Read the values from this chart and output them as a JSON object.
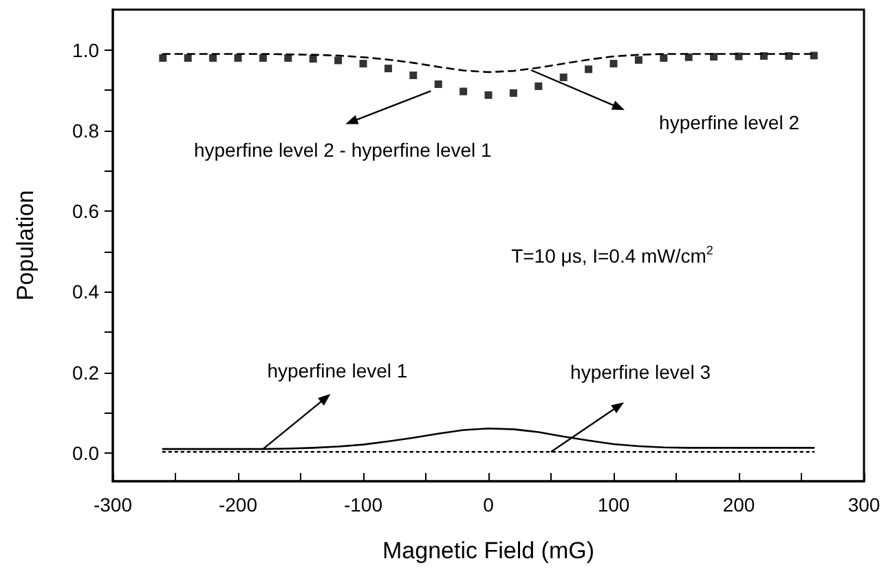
{
  "chart_data": {
    "type": "line",
    "xlabel": "Magnetic Field (mG)",
    "ylabel": "Population",
    "xlim": [
      -300,
      300
    ],
    "xticks": [
      -300,
      {
        "value": -250,
        "label": null
      },
      -200,
      {
        "value": -150,
        "label": null
      },
      -100,
      {
        "value": -50,
        "label": null
      },
      0,
      {
        "value": 50,
        "label": null
      },
      100,
      {
        "value": 150,
        "label": null
      },
      200,
      {
        "value": 250,
        "label": null
      },
      300
    ],
    "ylim": [
      -0.07,
      1.1
    ],
    "yticks": [
      {
        "value": 0,
        "label": "0.0"
      },
      {
        "value": 0.1,
        "label": null
      },
      0.2,
      {
        "value": 0.3,
        "label": null
      },
      0.4,
      {
        "value": 0.5,
        "label": null
      },
      0.6,
      {
        "value": 0.7,
        "label": null
      },
      0.8,
      {
        "value": 0.9,
        "label": null
      },
      {
        "value": 1,
        "label": "1.0"
      }
    ],
    "x": [
      -260,
      -240,
      -220,
      -200,
      -180,
      -160,
      -140,
      -120,
      -100,
      -80,
      -60,
      -40,
      -20,
      0,
      20,
      40,
      60,
      80,
      100,
      120,
      140,
      160,
      180,
      200,
      220,
      240,
      260
    ],
    "series": [
      {
        "type": "scatter",
        "marker": "square",
        "color": "#000000",
        "values": [
          0.98,
          0.98,
          0.98,
          0.98,
          0.98,
          0.98,
          0.978,
          0.974,
          0.966,
          0.954,
          0.937,
          0.915,
          0.897,
          0.888,
          0.893,
          0.91,
          0.932,
          0.952,
          0.966,
          0.975,
          0.98,
          0.982,
          0.983,
          0.984,
          0.985,
          0.985,
          0.986
        ]
      },
      {
        "line_style": "dashed",
        "marker": "none",
        "color": "#000000",
        "values": [
          0.99,
          0.99,
          0.99,
          0.99,
          0.99,
          0.989,
          0.988,
          0.986,
          0.982,
          0.976,
          0.968,
          0.958,
          0.949,
          0.945,
          0.948,
          0.956,
          0.966,
          0.976,
          0.984,
          0.988,
          0.99,
          0.99,
          0.99,
          0.99,
          0.99,
          0.99,
          0.99
        ]
      },
      {
        "line_style": "solid",
        "marker": "none",
        "color": "#000000",
        "values": [
          0.01,
          0.01,
          0.01,
          0.01,
          0.01,
          0.011,
          0.013,
          0.016,
          0.021,
          0.029,
          0.038,
          0.048,
          0.057,
          0.061,
          0.059,
          0.052,
          0.041,
          0.031,
          0.022,
          0.017,
          0.014,
          0.013,
          0.013,
          0.013,
          0.013,
          0.013,
          0.013
        ]
      },
      {
        "line_style": "dotted",
        "marker": "none",
        "color": "#000000",
        "values": [
          0.003,
          0.003,
          0.003,
          0.003,
          0.003,
          0.003,
          0.003,
          0.003,
          0.003,
          0.003,
          0.003,
          0.003,
          0.003,
          0.003,
          0.003,
          0.003,
          0.003,
          0.003,
          0.003,
          0.003,
          0.003,
          0.003,
          0.003,
          0.003,
          0.003,
          0.003,
          0.003
        ]
      }
    ],
    "annotations": [
      {
        "text": "hyperfine level 2 - hyperfine level 1",
        "x": -46,
        "y": 0.898
      },
      "hyperfine level 2",
      {
        "text": "hyperfine level 1",
        "x": -180,
        "y": 0.01
      },
      {
        "text": "hyperfine level 3",
        "x": 50,
        "y": 0.003
      },
      "T=10 μs, I=0.4 mW/cm$^{2}$"
    ]
  }
}
